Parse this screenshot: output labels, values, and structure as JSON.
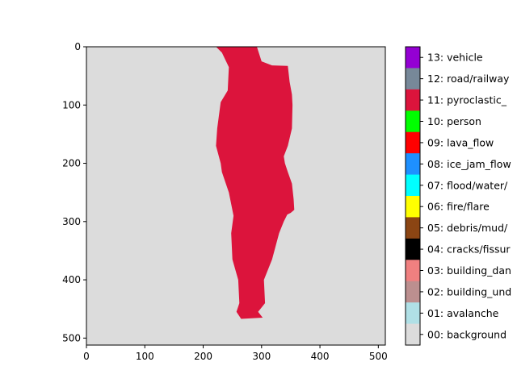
{
  "chart_data": {
    "type": "heatmap",
    "title": "",
    "xlabel": "",
    "ylabel": "",
    "xlim": [
      0,
      512
    ],
    "ylim": [
      512,
      0
    ],
    "y_inverted": true,
    "grid": false,
    "x_ticks": [
      "0",
      "100",
      "200",
      "300",
      "400",
      "500"
    ],
    "y_ticks": [
      "0",
      "100",
      "200",
      "300",
      "400",
      "500"
    ],
    "background_class": "00: background",
    "segmented_class": "11: pyroclastic_flow (visible as 11: pyroclastic_)",
    "colorbar": {
      "placement": "right",
      "classes": [
        {
          "label": "13: vehicle",
          "color": "#9400d3"
        },
        {
          "label": "12: road/railway",
          "color": "#778899"
        },
        {
          "label": "11: pyroclastic_",
          "color": "#dc143c"
        },
        {
          "label": "10: person",
          "color": "#00ff00"
        },
        {
          "label": "09: lava_flow",
          "color": "#ff0000"
        },
        {
          "label": "08: ice_jam_flow",
          "color": "#1e90ff"
        },
        {
          "label": "07: flood/water/",
          "color": "#00ffff"
        },
        {
          "label": "06: fire/flare",
          "color": "#ffff00"
        },
        {
          "label": "05: debris/mud/",
          "color": "#8b4513"
        },
        {
          "label": "04: cracks/fissur",
          "color": "#000000"
        },
        {
          "label": "03: building_dan",
          "color": "#f08080"
        },
        {
          "label": "02: building_und",
          "color": "#bc8f8f"
        },
        {
          "label": "01: avalanche",
          "color": "#b0e0e6"
        },
        {
          "label": "00: background",
          "color": "#dcdcdc"
        }
      ]
    },
    "region_outline_image_coords": [
      [
        222,
        0
      ],
      [
        292,
        0
      ],
      [
        300,
        25
      ],
      [
        318,
        32
      ],
      [
        345,
        33
      ],
      [
        348,
        60
      ],
      [
        352,
        82
      ],
      [
        353,
        100
      ],
      [
        352,
        140
      ],
      [
        345,
        170
      ],
      [
        338,
        188
      ],
      [
        340,
        200
      ],
      [
        345,
        215
      ],
      [
        352,
        235
      ],
      [
        355,
        262
      ],
      [
        356,
        280
      ],
      [
        350,
        285
      ],
      [
        344,
        288
      ],
      [
        338,
        300
      ],
      [
        330,
        320
      ],
      [
        318,
        365
      ],
      [
        304,
        400
      ],
      [
        306,
        440
      ],
      [
        294,
        455
      ],
      [
        302,
        465
      ],
      [
        265,
        467
      ],
      [
        257,
        455
      ],
      [
        262,
        440
      ],
      [
        260,
        400
      ],
      [
        250,
        365
      ],
      [
        248,
        320
      ],
      [
        252,
        290
      ],
      [
        244,
        250
      ],
      [
        232,
        215
      ],
      [
        230,
        200
      ],
      [
        222,
        170
      ],
      [
        224,
        140
      ],
      [
        230,
        95
      ],
      [
        242,
        75
      ],
      [
        244,
        35
      ],
      [
        232,
        10
      ]
    ]
  }
}
